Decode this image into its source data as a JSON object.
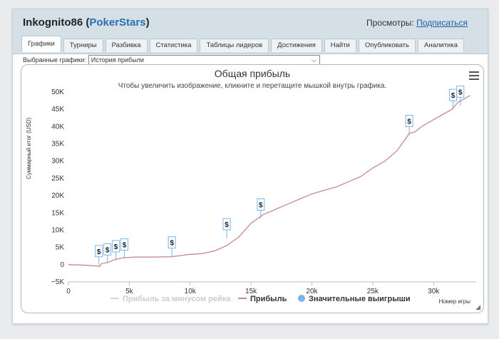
{
  "header": {
    "player": "Inkognito86",
    "site": "PokerStars",
    "views_label": "Просмотры:",
    "subscribe_link": "Подписаться"
  },
  "tabs": [
    {
      "label": "Графики",
      "active": true
    },
    {
      "label": "Турниры"
    },
    {
      "label": "Разбивка"
    },
    {
      "label": "Статистика"
    },
    {
      "label": "Таблицы лидеров"
    },
    {
      "label": "Достижения"
    },
    {
      "label": "Найти"
    },
    {
      "label": "Опубликовать"
    },
    {
      "label": "Аналитика"
    }
  ],
  "selector": {
    "label": "Выбранные графики:",
    "value": "История прибыли"
  },
  "colors": {
    "profit": "#c98a8a",
    "rake": "#d6d6d6",
    "wins": "#7cb5ec",
    "accent": "#2a6fb5"
  },
  "chart_data": {
    "type": "line",
    "title": "Общая прибыль",
    "subtitle": "Чтобы увеличить изображение, кликните и перетащите мышкой внутрь графика.",
    "ylabel": "Суммарный итог (USD)",
    "xlabel": "Номер игры",
    "xlim": [
      0,
      33500
    ],
    "ylim": [
      -5000,
      50000
    ],
    "x_ticks": [
      0,
      5000,
      10000,
      15000,
      20000,
      25000,
      30000
    ],
    "x_tick_labels": [
      "0",
      "5k",
      "10k",
      "15k",
      "20k",
      "25k",
      "30k"
    ],
    "y_ticks": [
      -5000,
      0,
      5000,
      10000,
      15000,
      20000,
      25000,
      30000,
      35000,
      40000,
      45000,
      50000
    ],
    "y_tick_labels": [
      "−5K",
      "0",
      "5K",
      "10K",
      "15K",
      "20K",
      "25K",
      "30K",
      "35K",
      "40K",
      "45K",
      "50K"
    ],
    "grid": false,
    "legend": "bottom",
    "series": [
      {
        "name": "Прибыль за минусом рейка",
        "visible": false,
        "x": [],
        "y": []
      },
      {
        "name": "Прибыль",
        "visible": true,
        "x": [
          0,
          1000,
          2000,
          2600,
          2700,
          3300,
          3800,
          4500,
          5500,
          7000,
          8500,
          10000,
          11000,
          12000,
          13000,
          14000,
          15000,
          16000,
          17000,
          18000,
          19000,
          20000,
          21000,
          22000,
          23000,
          24000,
          25000,
          26000,
          27000,
          28000,
          28500,
          29000,
          30000,
          31000,
          31500,
          32000,
          33000
        ],
        "y": [
          0,
          -100,
          -300,
          -500,
          300,
          700,
          1500,
          2000,
          2200,
          2200,
          2300,
          3000,
          3200,
          4000,
          5500,
          8000,
          12000,
          14500,
          16000,
          17500,
          19000,
          20500,
          21500,
          22500,
          24000,
          25500,
          28000,
          30000,
          33000,
          38000,
          38500,
          40000,
          42000,
          44000,
          45000,
          47000,
          49000
        ]
      }
    ],
    "wins_legend": "Значительные выигрыши",
    "big_wins": [
      {
        "x": 2500,
        "y": -200,
        "label": "$"
      },
      {
        "x": 3200,
        "y": 300,
        "label": "$"
      },
      {
        "x": 3900,
        "y": 1200,
        "label": "$"
      },
      {
        "x": 4600,
        "y": 1700,
        "label": "$"
      },
      {
        "x": 8500,
        "y": 2300,
        "label": "$"
      },
      {
        "x": 13000,
        "y": 7600,
        "label": "$"
      },
      {
        "x": 15800,
        "y": 13300,
        "label": "$"
      },
      {
        "x": 28000,
        "y": 37500,
        "label": "$"
      },
      {
        "x": 31600,
        "y": 45000,
        "label": "$"
      },
      {
        "x": 32200,
        "y": 46000,
        "label": "$"
      }
    ]
  }
}
